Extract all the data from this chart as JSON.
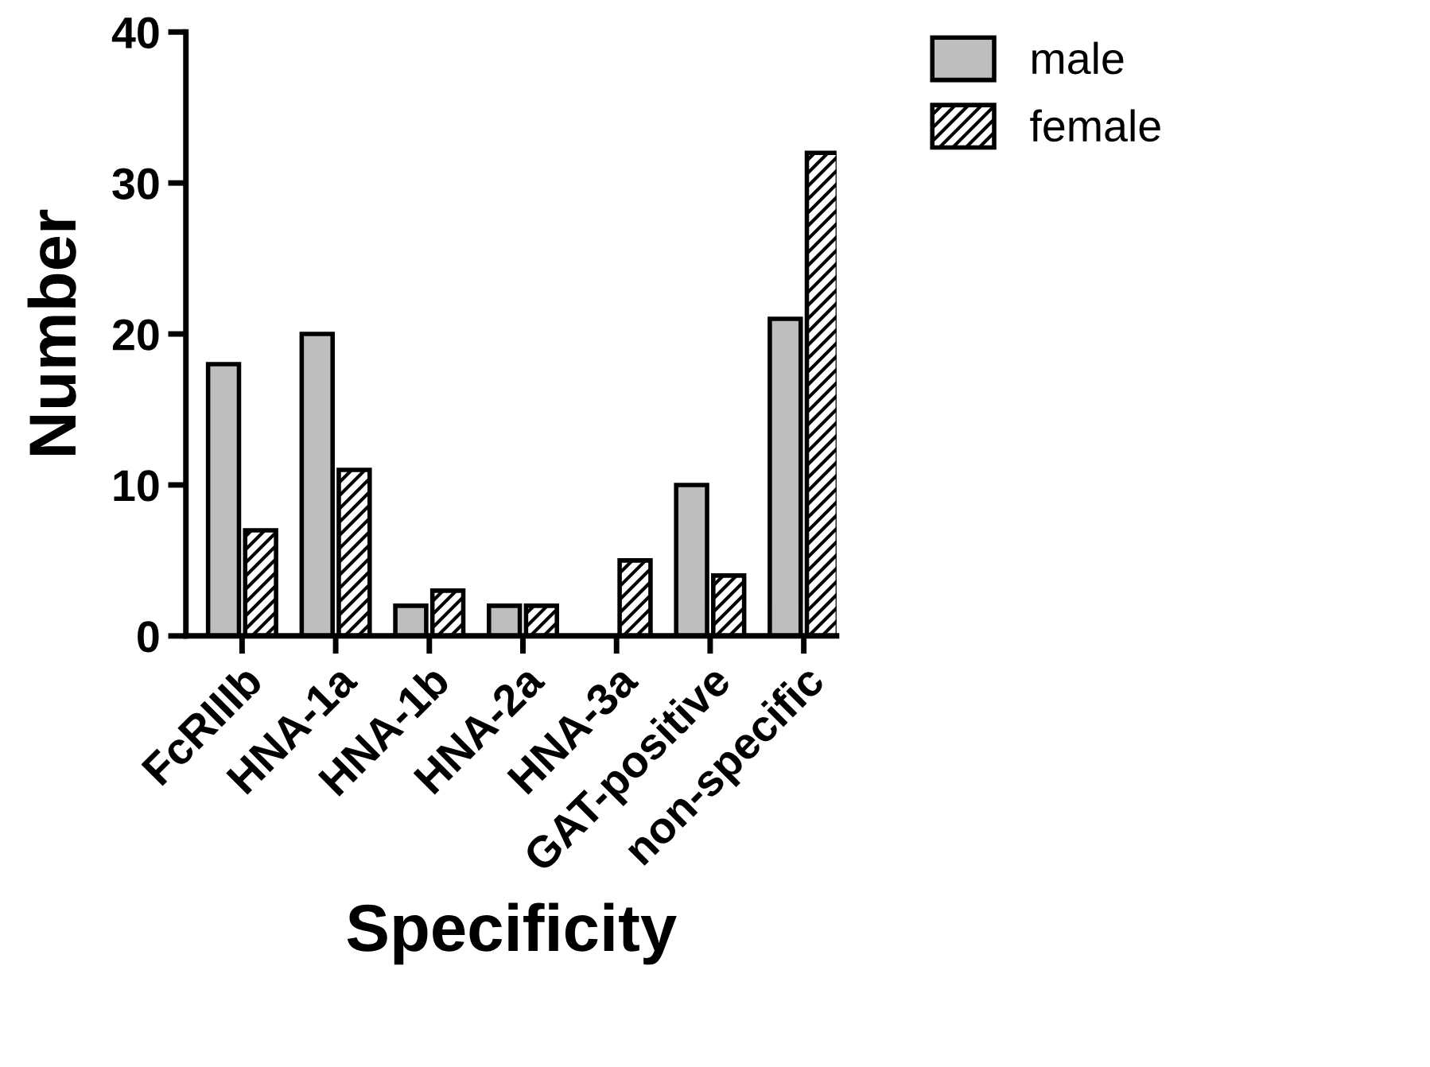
{
  "chart_data": {
    "type": "bar",
    "xlabel": "Specificity",
    "ylabel": "Number",
    "categories": [
      "FcRIIIb",
      "HNA-1a",
      "HNA-1b",
      "HNA-2a",
      "HNA-3a",
      "GAT-positive",
      "non-specific"
    ],
    "series": [
      {
        "name": "male",
        "color": "#bebebe",
        "values": [
          18,
          20,
          2,
          2,
          null,
          10,
          21
        ]
      },
      {
        "name": "female",
        "color": "#000000",
        "values": [
          7,
          11,
          3,
          2,
          5,
          4,
          32
        ]
      }
    ],
    "ylim": [
      0,
      40
    ],
    "yticks": [
      0,
      10,
      20,
      30,
      40
    ],
    "grid": false,
    "legend": "top right"
  }
}
